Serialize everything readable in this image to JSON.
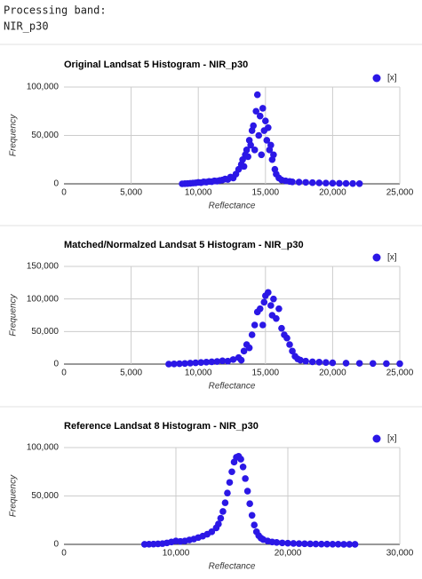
{
  "console": {
    "label": "Processing band:",
    "band": "NIR_p30"
  },
  "chart_data": [
    {
      "type": "scatter",
      "title": "Original Landsat 5 Histogram - NIR_p30",
      "xlabel": "Reflectance",
      "ylabel": "Frequency",
      "xlim": [
        0,
        25000
      ],
      "xticks": [
        0,
        {
          "value": 5000,
          "label": "5,000"
        },
        {
          "value": 10000,
          "label": "10,000"
        },
        {
          "value": 15000,
          "label": "15,000"
        },
        {
          "value": 20000,
          "label": "20,000"
        },
        {
          "value": 25000,
          "label": "25,000"
        }
      ],
      "ylim": [
        0,
        100000
      ],
      "yticks": [
        0,
        {
          "value": 50000,
          "label": "50,000"
        },
        {
          "value": 100000,
          "label": "100,000"
        }
      ],
      "grid": true,
      "legend": "top-right",
      "x": [
        8800,
        9000,
        9200,
        9400,
        9600,
        9800,
        10000,
        10200,
        10400,
        10600,
        10800,
        11000,
        11200,
        11400,
        11600,
        11800,
        12000,
        12200,
        12400,
        12600,
        12800,
        13000,
        13200,
        13300,
        13400,
        13500,
        13600,
        13700,
        13800,
        13900,
        14000,
        14100,
        14200,
        14300,
        14400,
        14500,
        14600,
        14700,
        14800,
        14900,
        15000,
        15100,
        15200,
        15300,
        15400,
        15500,
        15600,
        15700,
        15800,
        16000,
        16200,
        16500,
        16800,
        17000,
        17500,
        18000,
        18500,
        19000,
        19500,
        20000,
        20500,
        21000,
        21500,
        22000
      ],
      "series": [
        {
          "name": "[x]",
          "color": "#2b17e6",
          "values": [
            0,
            200,
            300,
            500,
            800,
            1000,
            1500,
            1200,
            2000,
            1800,
            2500,
            2200,
            3000,
            2800,
            3500,
            4000,
            5000,
            4500,
            7000,
            6000,
            10000,
            15000,
            20000,
            25000,
            18000,
            30000,
            35000,
            28000,
            45000,
            40000,
            55000,
            60000,
            35000,
            75000,
            92000,
            50000,
            70000,
            30000,
            78000,
            55000,
            65000,
            45000,
            58000,
            35000,
            40000,
            25000,
            30000,
            15000,
            10000,
            6000,
            4000,
            3000,
            2500,
            2000,
            1800,
            1500,
            1200,
            1000,
            800,
            600,
            500,
            400,
            300,
            200
          ]
        }
      ]
    },
    {
      "type": "scatter",
      "title": "Matched/Normalzed Landsat 5 Histogram - NIR_p30",
      "xlabel": "Reflectance",
      "ylabel": "Frequency",
      "xlim": [
        0,
        25000
      ],
      "xticks": [
        0,
        {
          "value": 5000,
          "label": "5,000"
        },
        {
          "value": 10000,
          "label": "10,000"
        },
        {
          "value": 15000,
          "label": "15,000"
        },
        {
          "value": 20000,
          "label": "20,000"
        },
        {
          "value": 25000,
          "label": "25,000"
        }
      ],
      "ylim": [
        0,
        150000
      ],
      "yticks": [
        0,
        {
          "value": 50000,
          "label": "50,000"
        },
        {
          "value": 100000,
          "label": "100,000"
        },
        {
          "value": 150000,
          "label": "150,000"
        }
      ],
      "grid": true,
      "legend": "top-right",
      "x": [
        7800,
        8200,
        8600,
        9000,
        9400,
        9800,
        10200,
        10600,
        11000,
        11400,
        11800,
        12200,
        12600,
        13000,
        13200,
        13400,
        13600,
        13800,
        14000,
        14200,
        14400,
        14600,
        14800,
        14900,
        15000,
        15200,
        15400,
        15500,
        15600,
        15800,
        16000,
        16200,
        16400,
        16600,
        16800,
        17000,
        17200,
        17400,
        17600,
        18000,
        18500,
        19000,
        19500,
        20000,
        21000,
        22000,
        23000,
        24000,
        25000
      ],
      "series": [
        {
          "name": "[x]",
          "color": "#2b17e6",
          "values": [
            0,
            300,
            600,
            1000,
            1500,
            2000,
            2500,
            3000,
            3500,
            4000,
            5000,
            4500,
            7000,
            10000,
            6000,
            20000,
            30000,
            25000,
            45000,
            60000,
            80000,
            85000,
            60000,
            95000,
            105000,
            110000,
            90000,
            75000,
            100000,
            70000,
            85000,
            55000,
            45000,
            40000,
            30000,
            20000,
            12000,
            8000,
            6000,
            4500,
            3500,
            3000,
            2500,
            2000,
            1500,
            1200,
            1000,
            800,
            600
          ]
        }
      ]
    },
    {
      "type": "scatter",
      "title": "Reference Landsat 8 Histogram - NIR_p30",
      "xlabel": "Reflectance",
      "ylabel": "Frequency",
      "xlim": [
        0,
        30000
      ],
      "xticks": [
        0,
        {
          "value": 10000,
          "label": "10,000"
        },
        {
          "value": 20000,
          "label": "20,000"
        },
        {
          "value": 30000,
          "label": "30,000"
        }
      ],
      "ylim": [
        0,
        100000
      ],
      "yticks": [
        0,
        {
          "value": 50000,
          "label": "50,000"
        },
        {
          "value": 100000,
          "label": "100,000"
        }
      ],
      "grid": true,
      "legend": "top-right",
      "x": [
        7200,
        7600,
        8000,
        8400,
        8800,
        9200,
        9600,
        10000,
        10400,
        10800,
        11200,
        11600,
        12000,
        12400,
        12800,
        13200,
        13600,
        13800,
        14000,
        14200,
        14400,
        14600,
        14800,
        15000,
        15200,
        15400,
        15600,
        15800,
        16000,
        16200,
        16400,
        16600,
        16800,
        17000,
        17200,
        17400,
        17600,
        17800,
        18200,
        18600,
        19000,
        19500,
        20000,
        20500,
        21000,
        21500,
        22000,
        22500,
        23000,
        23500,
        24000,
        24500,
        25000,
        25500,
        26000
      ],
      "series": [
        {
          "name": "[x]",
          "color": "#2b17e6",
          "values": [
            100,
            200,
            300,
            500,
            800,
            1500,
            2500,
            3500,
            3000,
            3500,
            4500,
            5500,
            7000,
            8500,
            10500,
            13000,
            17000,
            21000,
            27000,
            34000,
            43000,
            53000,
            64000,
            75000,
            85000,
            90000,
            91000,
            88000,
            80000,
            68000,
            55000,
            42000,
            30000,
            20000,
            13000,
            9000,
            6500,
            5000,
            3500,
            2500,
            2000,
            1500,
            1200,
            1000,
            800,
            600,
            500,
            400,
            300,
            250,
            200,
            150,
            100,
            80,
            50
          ]
        }
      ]
    }
  ]
}
